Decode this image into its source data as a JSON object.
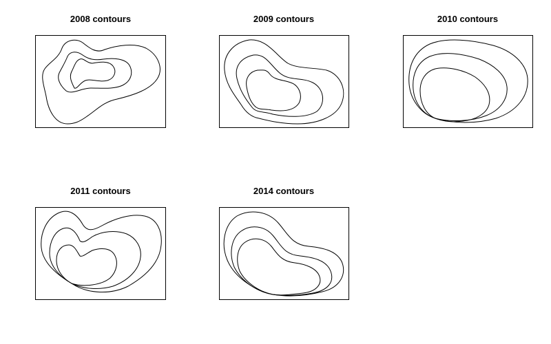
{
  "chart_data": [
    {
      "type": "contour",
      "title": "2008 contours",
      "contour_count": 3,
      "axes_visible": false,
      "grid": false,
      "legend": "none"
    },
    {
      "type": "contour",
      "title": "2009 contours",
      "contour_count": 3,
      "axes_visible": false,
      "grid": false,
      "legend": "none"
    },
    {
      "type": "contour",
      "title": "2010 contours",
      "contour_count": 3,
      "axes_visible": false,
      "grid": false,
      "legend": "none"
    },
    {
      "type": "contour",
      "title": "2011 contours",
      "contour_count": 3,
      "axes_visible": false,
      "grid": false,
      "legend": "none"
    },
    {
      "type": "contour",
      "title": "2014 contours",
      "contour_count": 3,
      "axes_visible": false,
      "grid": false,
      "legend": "none"
    }
  ]
}
